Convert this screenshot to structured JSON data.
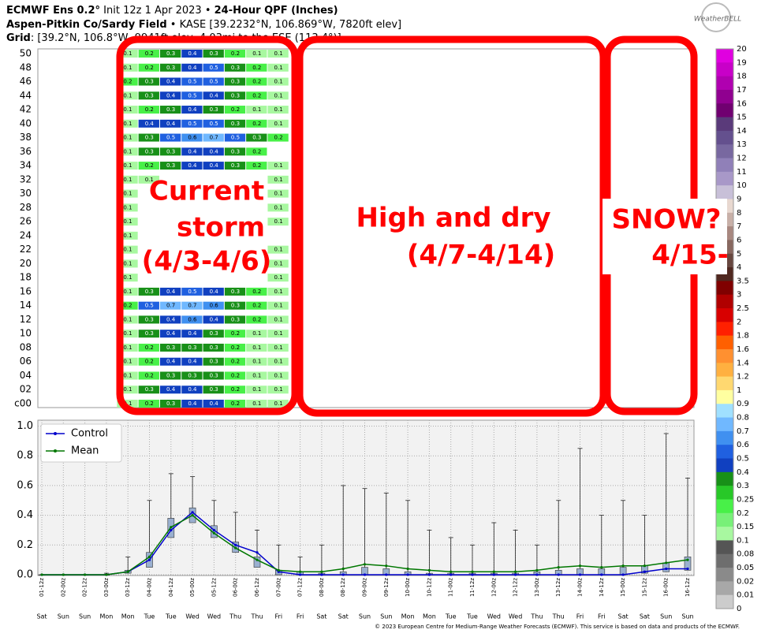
{
  "header": {
    "title_main": "ECMWF Ens 0.2°",
    "title_init": " Init 12z 1 Apr 2023 • ",
    "title_field": "24-Hour QPF (Inches)",
    "station": "Aspen-Pitkin Co/Sardy Field",
    "station_info": " • KASE [39.2232°N, 106.869°W, 7820ft elev]",
    "grid_label": "Grid",
    "grid_info": ": [39.2°N, 106.8°W, 9941ft elev, 4.03mi to the ESE (113.4°)]",
    "logo": "WeatherBELL"
  },
  "annotations": {
    "current": [
      "Current",
      "storm",
      "(4/3-4/6)"
    ],
    "dry": [
      "High and dry",
      "(4/7-4/14)"
    ],
    "snow": [
      "SNOW?",
      "4/15-"
    ]
  },
  "heatmap": {
    "rows": [
      {
        "label": "50",
        "values": [
          0.1,
          0.2,
          0.3,
          0.4,
          0.3,
          0.2,
          0.1,
          0.1
        ]
      },
      {
        "label": "48",
        "values": [
          0.1,
          0.2,
          0.3,
          0.4,
          0.5,
          0.3,
          0.2,
          0.1
        ]
      },
      {
        "label": "46",
        "values": [
          0.2,
          0.3,
          0.4,
          0.5,
          0.5,
          0.3,
          0.2,
          0.1
        ]
      },
      {
        "label": "44",
        "values": [
          0.1,
          0.3,
          0.4,
          0.5,
          0.4,
          0.3,
          0.2,
          0.1
        ]
      },
      {
        "label": "42",
        "values": [
          0.1,
          0.2,
          0.3,
          0.4,
          0.3,
          0.2,
          0.1,
          0.1
        ]
      },
      {
        "label": "40",
        "values": [
          0.1,
          0.4,
          0.4,
          0.5,
          0.5,
          0.3,
          0.2,
          0.1
        ]
      },
      {
        "label": "38",
        "values": [
          0.1,
          0.3,
          0.5,
          0.6,
          0.7,
          0.5,
          0.3,
          0.2
        ]
      },
      {
        "label": "36",
        "values": [
          0.1,
          0.3,
          0.3,
          0.4,
          0.4,
          0.3,
          0.2,
          null
        ]
      },
      {
        "label": "34",
        "values": [
          0.1,
          0.2,
          0.3,
          0.4,
          0.4,
          0.3,
          0.2,
          0.1
        ]
      },
      {
        "label": "32",
        "values": [
          0.1,
          0.1,
          null,
          null,
          null,
          null,
          null,
          0.1
        ]
      },
      {
        "label": "30",
        "values": [
          0.1,
          null,
          null,
          null,
          null,
          null,
          null,
          0.1
        ]
      },
      {
        "label": "28",
        "values": [
          0.1,
          null,
          null,
          null,
          null,
          null,
          null,
          0.1
        ]
      },
      {
        "label": "26",
        "values": [
          0.1,
          null,
          null,
          null,
          null,
          null,
          null,
          0.1
        ]
      },
      {
        "label": "24",
        "values": [
          0.1,
          null,
          null,
          null,
          null,
          null,
          null,
          null
        ]
      },
      {
        "label": "22",
        "values": [
          0.1,
          null,
          null,
          null,
          null,
          null,
          null,
          0.1
        ]
      },
      {
        "label": "20",
        "values": [
          0.1,
          null,
          null,
          null,
          null,
          null,
          null,
          0.1
        ]
      },
      {
        "label": "18",
        "values": [
          0.1,
          null,
          null,
          null,
          null,
          null,
          null,
          0.1
        ]
      },
      {
        "label": "16",
        "values": [
          0.1,
          0.3,
          0.4,
          0.5,
          0.4,
          0.3,
          0.2,
          0.1
        ]
      },
      {
        "label": "14",
        "values": [
          0.2,
          0.5,
          0.7,
          0.7,
          0.6,
          0.3,
          0.2,
          0.1
        ]
      },
      {
        "label": "12",
        "values": [
          0.1,
          0.3,
          0.4,
          0.6,
          0.4,
          0.3,
          0.2,
          0.1
        ]
      },
      {
        "label": "10",
        "values": [
          0.1,
          0.3,
          0.4,
          0.4,
          0.3,
          0.2,
          0.1,
          0.1
        ]
      },
      {
        "label": "08",
        "values": [
          0.1,
          0.2,
          0.3,
          0.3,
          0.3,
          0.2,
          0.1,
          0.1
        ]
      },
      {
        "label": "06",
        "values": [
          0.1,
          0.2,
          0.4,
          0.4,
          0.3,
          0.2,
          0.1,
          0.1
        ]
      },
      {
        "label": "04",
        "values": [
          0.1,
          0.2,
          0.3,
          0.3,
          0.3,
          0.2,
          0.1,
          0.1
        ]
      },
      {
        "label": "02",
        "values": [
          0.1,
          0.3,
          0.4,
          0.4,
          0.3,
          0.2,
          0.1,
          0.1
        ]
      },
      {
        "label": "c00",
        "values": [
          0.1,
          0.2,
          0.3,
          0.4,
          0.4,
          0.2,
          0.1,
          0.1
        ]
      }
    ]
  },
  "colorbar": {
    "labels": [
      20,
      19,
      18,
      17,
      16,
      15,
      14,
      13,
      12,
      11,
      10,
      9,
      8,
      7,
      6,
      5,
      4,
      3.5,
      3,
      2.5,
      2,
      1.8,
      1.6,
      1.4,
      1.2,
      1,
      0.9,
      0.8,
      0.7,
      0.6,
      0.5,
      0.4,
      0.3,
      0.25,
      0.2,
      0.15,
      0.1,
      0.08,
      0.05,
      0.02,
      0.01,
      0
    ],
    "colors": [
      "#e000e0",
      "#c800c8",
      "#b000b0",
      "#900090",
      "#700070",
      "#5a3a7a",
      "#64508e",
      "#7868a0",
      "#9080b8",
      "#a898c8",
      "#c8c0d8",
      "#e8d8d0",
      "#c8b0a8",
      "#a88880",
      "#886860",
      "#684840",
      "#502820",
      "#800000",
      "#b00000",
      "#d80000",
      "#ff2000",
      "#ff6000",
      "#ff9030",
      "#ffb040",
      "#ffd870",
      "#ffffa0",
      "#a0e0ff",
      "#70b8ff",
      "#4090f0",
      "#2060e0",
      "#1040c0",
      "#189018",
      "#28c828",
      "#48f048",
      "#78f078",
      "#a8f8a0",
      "#555555",
      "#6e6e6e",
      "#8a8a8a",
      "#a8a8a8",
      "#cccccc"
    ]
  },
  "chart_data": {
    "type": "line",
    "categories": [
      "01-12z",
      "02-00z",
      "02-12z",
      "03-00z",
      "03-12z",
      "04-00z",
      "04-12z",
      "05-00z",
      "05-12z",
      "06-00z",
      "06-12z",
      "07-00z",
      "07-12z",
      "08-00z",
      "08-12z",
      "09-00z",
      "09-12z",
      "10-00z",
      "10-12z",
      "11-00z",
      "11-12z",
      "12-00z",
      "12-12z",
      "13-00z",
      "13-12z",
      "14-00z",
      "14-12z",
      "15-00z",
      "15-12z",
      "16-00z",
      "16-12z"
    ],
    "days": [
      "Sat",
      "Sun",
      "Sun",
      "Mon",
      "Mon",
      "Tue",
      "Tue",
      "Wed",
      "Wed",
      "Thu",
      "Thu",
      "Fri",
      "Fri",
      "Sat",
      "Sat",
      "Sun",
      "Sun",
      "Mon",
      "Mon",
      "Tue",
      "Tue",
      "Wed",
      "Wed",
      "Thu",
      "Thu",
      "Fri",
      "Fri",
      "Sat",
      "Sat",
      "Sun",
      "Sun"
    ],
    "series": [
      {
        "name": "Control",
        "color": "#0000cc",
        "values": [
          0,
          0,
          0,
          0,
          0.02,
          0.1,
          0.3,
          0.42,
          0.3,
          0.2,
          0.15,
          0.02,
          0,
          0,
          0,
          0,
          0,
          0,
          0,
          0,
          0,
          0,
          0,
          0,
          0,
          0,
          0,
          0,
          0.02,
          0.04,
          0.04
        ]
      },
      {
        "name": "Mean",
        "color": "#007700",
        "values": [
          0,
          0,
          0,
          0,
          0.02,
          0.12,
          0.32,
          0.4,
          0.28,
          0.18,
          0.1,
          0.03,
          0.02,
          0.02,
          0.04,
          0.07,
          0.06,
          0.04,
          0.03,
          0.02,
          0.02,
          0.02,
          0.02,
          0.03,
          0.05,
          0.06,
          0.05,
          0.06,
          0.06,
          0.08,
          0.1
        ]
      }
    ],
    "box_q1": [
      0,
      0,
      0,
      0,
      0.01,
      0.05,
      0.25,
      0.35,
      0.25,
      0.15,
      0.05,
      0,
      0,
      0,
      0,
      0,
      0,
      0,
      0,
      0,
      0,
      0,
      0,
      0,
      0,
      0,
      0,
      0,
      0.01,
      0.02,
      0.03
    ],
    "box_q3": [
      0,
      0,
      0,
      0,
      0.03,
      0.15,
      0.38,
      0.45,
      0.33,
      0.22,
      0.12,
      0.03,
      0.02,
      0.01,
      0.02,
      0.05,
      0.04,
      0.02,
      0.01,
      0.01,
      0.01,
      0.01,
      0.01,
      0.02,
      0.03,
      0.04,
      0.04,
      0.05,
      0.06,
      0.08,
      0.12
    ],
    "whisker_max": [
      0,
      0,
      0,
      0.01,
      0.12,
      0.5,
      0.68,
      0.66,
      0.5,
      0.42,
      0.3,
      0.2,
      0.12,
      0.2,
      0.6,
      0.58,
      0.55,
      0.5,
      0.3,
      0.25,
      0.2,
      0.35,
      0.3,
      0.2,
      0.5,
      0.85,
      0.4,
      0.5,
      0.4,
      0.95,
      0.65
    ],
    "box_color": "#9ab0d0",
    "ylim": [
      0,
      1.04
    ],
    "yticks": [
      {
        "value": 0,
        "label": "0.0"
      },
      0.2,
      0.4,
      0.6,
      0.8,
      {
        "value": 1,
        "label": "1.0"
      }
    ],
    "grid": true,
    "legend": "upper left"
  },
  "footer": "© 2023 European Centre for Medium-Range Weather Forecasts (ECMWF). This service is based on data and products of the ECMWF."
}
